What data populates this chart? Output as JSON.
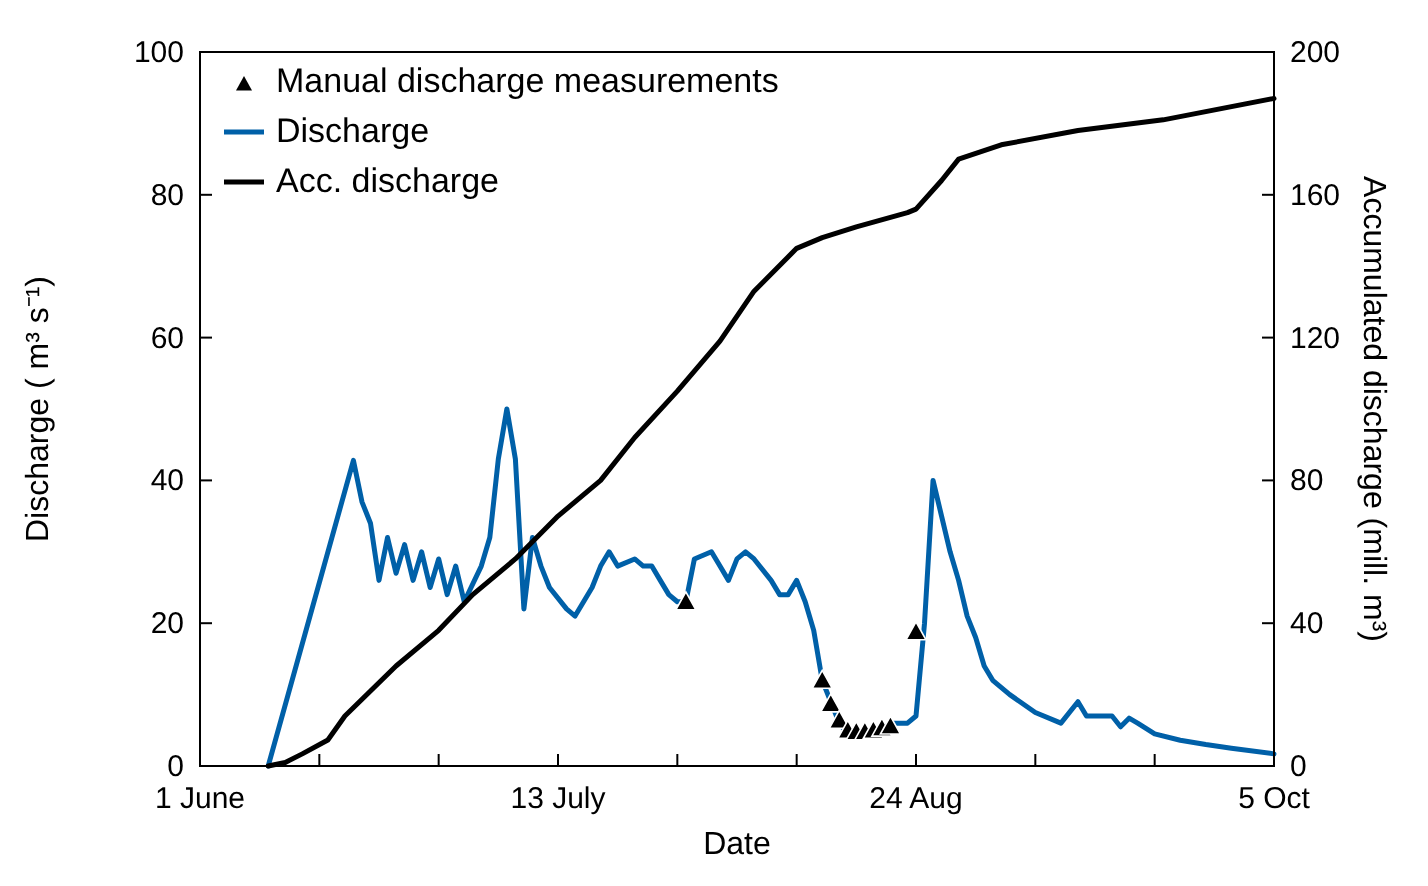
{
  "chart_data": {
    "type": "line",
    "xlabel": "Date",
    "ylabel": "Discharge ( m³ s⁻¹)",
    "y2label": "Accumulated discharge (mill. m³)",
    "xlim": [
      "--06-01",
      "--10-05"
    ],
    "xticks": [
      {
        "value": "--06-01",
        "label": "1 June"
      },
      {
        "value": "--06-15",
        "label": null
      },
      {
        "value": "--06-29",
        "label": null
      },
      {
        "value": "--07-13",
        "label": "13 July"
      },
      {
        "value": "--07-27",
        "label": null
      },
      {
        "value": "--08-10",
        "label": null
      },
      {
        "value": "--08-24",
        "label": "24 Aug"
      },
      {
        "value": "--09-07",
        "label": null
      },
      {
        "value": "--09-21",
        "label": null
      },
      {
        "value": "--10-05",
        "label": "5 Oct"
      }
    ],
    "ylim": [
      0,
      100
    ],
    "yticks": [
      0,
      20,
      40,
      60,
      80,
      100
    ],
    "y2lim": [
      0,
      200
    ],
    "y2ticks": [
      0,
      40,
      80,
      120,
      160,
      200
    ],
    "grid": false,
    "legend": "top left",
    "line_style": "solid",
    "series": [
      {
        "name": "Manual discharge measurements",
        "type": "scatter",
        "marker": "triangle",
        "color": "#000000",
        "x": [
          "--07-28",
          "--08-13",
          "--08-14",
          "--08-15",
          "--08-16",
          "--08-17",
          "--08-18",
          "--08-19",
          "--08-20",
          "--08-21",
          "--08-24"
        ],
        "values": [
          23,
          12,
          8.7,
          6.4,
          5,
          4.8,
          4.8,
          5,
          5.3,
          5.6,
          18.8
        ]
      },
      {
        "name": "Discharge",
        "type": "line",
        "color": "#0060a8",
        "x": [
          "--06-09",
          "--06-19",
          "--06-20",
          "--06-21",
          "--06-22",
          "--06-23",
          "--06-24",
          "--06-25",
          "--06-26",
          "--06-27",
          "--06-28",
          "--06-29",
          "--06-30",
          "--07-01",
          "--07-02",
          "--07-04",
          "--07-05",
          "--07-06",
          "--07-07",
          "--07-08",
          "--07-09",
          "--07-10",
          "--07-11",
          "--07-12",
          "--07-14",
          "--07-15",
          "--07-16",
          "--07-17",
          "--07-18",
          "--07-19",
          "--07-20",
          "--07-22",
          "--07-23",
          "--07-24",
          "--07-25",
          "--07-26",
          "--07-27",
          "--07-28",
          "--07-29",
          "--07-31",
          "--08-01",
          "--08-02",
          "--08-03",
          "--08-04",
          "--08-05",
          "--08-07",
          "--08-08",
          "--08-09",
          "--08-10",
          "--08-11",
          "--08-12",
          "--08-13",
          "--08-14",
          "--08-15",
          "--08-16",
          "--08-17",
          "--08-18",
          "--08-19",
          "--08-20",
          "--08-21",
          "--08-23",
          "--08-24",
          "--08-25",
          "--08-26",
          "--08-27",
          "--08-28",
          "--08-29",
          "--08-30",
          "--08-31",
          "--09-01",
          "--09-02",
          "--09-04",
          "--09-07",
          "--09-10",
          "--09-12",
          "--09-13",
          "--09-14",
          "--09-16",
          "--09-17",
          "--09-18",
          "--09-19",
          "--09-21",
          "--09-24",
          "--09-27",
          "--09-30",
          "--10-05"
        ],
        "values": [
          0,
          42.8,
          37,
          34,
          26,
          32,
          27,
          31,
          26,
          30,
          25,
          29,
          24,
          28,
          23,
          28,
          32,
          43,
          50,
          43,
          22,
          32,
          28,
          25,
          22,
          21,
          23,
          25,
          28,
          30,
          28,
          29,
          28,
          28,
          26,
          24,
          23,
          23,
          29,
          30,
          28,
          26,
          29,
          30,
          29,
          26,
          24,
          24,
          26,
          23,
          19,
          12,
          9,
          6,
          4.5,
          4,
          4.5,
          5,
          5.3,
          6,
          6,
          7,
          20,
          40,
          35,
          30,
          26,
          21,
          18,
          14,
          12,
          10,
          7.5,
          6,
          9,
          7,
          7,
          7,
          5.5,
          6.7,
          6,
          4.5,
          3.6,
          3,
          2.5,
          1.7
        ]
      },
      {
        "name": "Acc. discharge",
        "type": "line",
        "axis": "y2",
        "color": "#000000",
        "x": [
          "--06-09",
          "--06-11",
          "--06-13",
          "--06-16",
          "--06-18",
          "--06-21",
          "--06-24",
          "--06-29",
          "--07-03",
          "--07-08",
          "--07-13",
          "--07-18",
          "--07-22",
          "--07-27",
          "--08-01",
          "--08-05",
          "--08-10",
          "--08-13",
          "--08-17",
          "--08-23",
          "--08-24",
          "--08-27",
          "--08-29",
          "--09-03",
          "--09-12",
          "--09-22",
          "--10-05"
        ],
        "values": [
          0,
          1,
          3.4,
          7.3,
          14,
          21,
          28,
          38,
          48,
          58,
          70,
          80,
          92,
          105,
          119,
          133,
          145,
          148,
          151,
          155,
          156,
          164,
          170,
          174,
          178,
          181,
          187
        ]
      }
    ]
  }
}
